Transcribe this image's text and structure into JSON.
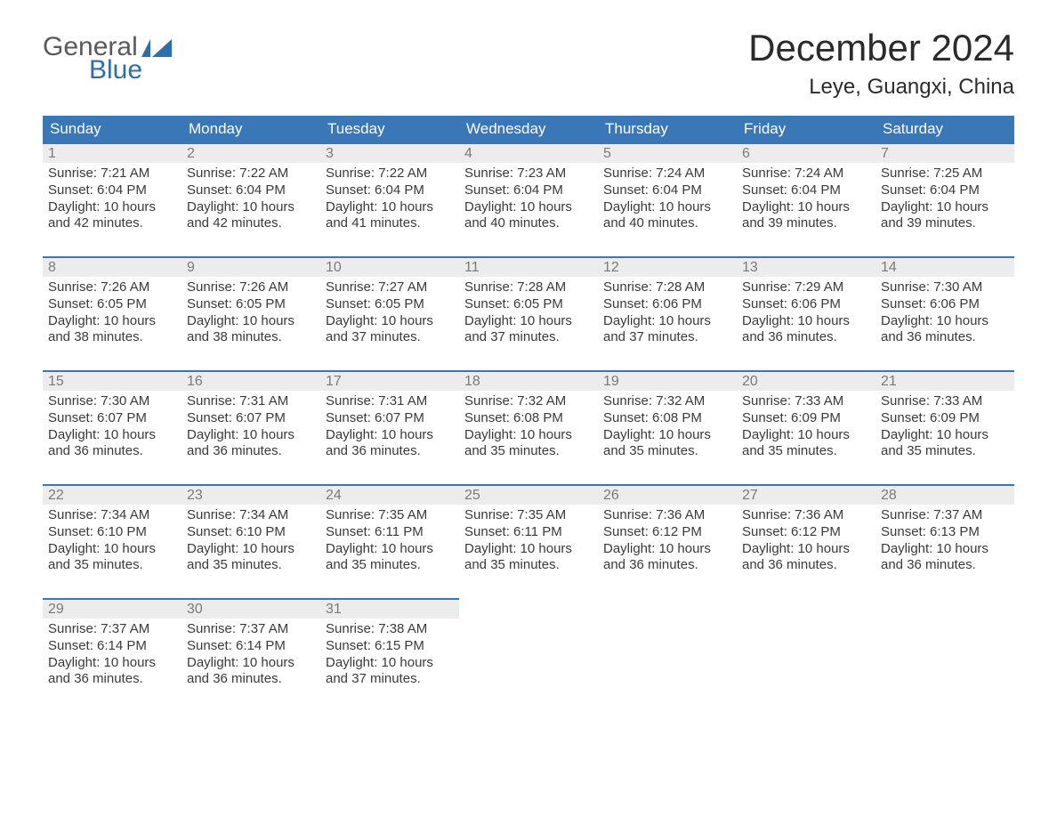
{
  "brand": {
    "part1": "General",
    "part2": "Blue",
    "flag_color": "#2c6fb0"
  },
  "title": "December 2024",
  "location": "Leye, Guangxi, China",
  "colors": {
    "header_bg": "#3a77b6",
    "header_text": "#ffffff",
    "daynum_bg": "#ececec",
    "daynum_border": "#3a77b6",
    "daynum_text": "#7a7a7a",
    "body_text": "#3a3a3a",
    "page_bg": "#ffffff"
  },
  "weekdays": [
    "Sunday",
    "Monday",
    "Tuesday",
    "Wednesday",
    "Thursday",
    "Friday",
    "Saturday"
  ],
  "days": [
    {
      "n": 1,
      "sr": "7:21 AM",
      "ss": "6:04 PM",
      "dl": "10 hours and 42 minutes."
    },
    {
      "n": 2,
      "sr": "7:22 AM",
      "ss": "6:04 PM",
      "dl": "10 hours and 42 minutes."
    },
    {
      "n": 3,
      "sr": "7:22 AM",
      "ss": "6:04 PM",
      "dl": "10 hours and 41 minutes."
    },
    {
      "n": 4,
      "sr": "7:23 AM",
      "ss": "6:04 PM",
      "dl": "10 hours and 40 minutes."
    },
    {
      "n": 5,
      "sr": "7:24 AM",
      "ss": "6:04 PM",
      "dl": "10 hours and 40 minutes."
    },
    {
      "n": 6,
      "sr": "7:24 AM",
      "ss": "6:04 PM",
      "dl": "10 hours and 39 minutes."
    },
    {
      "n": 7,
      "sr": "7:25 AM",
      "ss": "6:04 PM",
      "dl": "10 hours and 39 minutes."
    },
    {
      "n": 8,
      "sr": "7:26 AM",
      "ss": "6:05 PM",
      "dl": "10 hours and 38 minutes."
    },
    {
      "n": 9,
      "sr": "7:26 AM",
      "ss": "6:05 PM",
      "dl": "10 hours and 38 minutes."
    },
    {
      "n": 10,
      "sr": "7:27 AM",
      "ss": "6:05 PM",
      "dl": "10 hours and 37 minutes."
    },
    {
      "n": 11,
      "sr": "7:28 AM",
      "ss": "6:05 PM",
      "dl": "10 hours and 37 minutes."
    },
    {
      "n": 12,
      "sr": "7:28 AM",
      "ss": "6:06 PM",
      "dl": "10 hours and 37 minutes."
    },
    {
      "n": 13,
      "sr": "7:29 AM",
      "ss": "6:06 PM",
      "dl": "10 hours and 36 minutes."
    },
    {
      "n": 14,
      "sr": "7:30 AM",
      "ss": "6:06 PM",
      "dl": "10 hours and 36 minutes."
    },
    {
      "n": 15,
      "sr": "7:30 AM",
      "ss": "6:07 PM",
      "dl": "10 hours and 36 minutes."
    },
    {
      "n": 16,
      "sr": "7:31 AM",
      "ss": "6:07 PM",
      "dl": "10 hours and 36 minutes."
    },
    {
      "n": 17,
      "sr": "7:31 AM",
      "ss": "6:07 PM",
      "dl": "10 hours and 36 minutes."
    },
    {
      "n": 18,
      "sr": "7:32 AM",
      "ss": "6:08 PM",
      "dl": "10 hours and 35 minutes."
    },
    {
      "n": 19,
      "sr": "7:32 AM",
      "ss": "6:08 PM",
      "dl": "10 hours and 35 minutes."
    },
    {
      "n": 20,
      "sr": "7:33 AM",
      "ss": "6:09 PM",
      "dl": "10 hours and 35 minutes."
    },
    {
      "n": 21,
      "sr": "7:33 AM",
      "ss": "6:09 PM",
      "dl": "10 hours and 35 minutes."
    },
    {
      "n": 22,
      "sr": "7:34 AM",
      "ss": "6:10 PM",
      "dl": "10 hours and 35 minutes."
    },
    {
      "n": 23,
      "sr": "7:34 AM",
      "ss": "6:10 PM",
      "dl": "10 hours and 35 minutes."
    },
    {
      "n": 24,
      "sr": "7:35 AM",
      "ss": "6:11 PM",
      "dl": "10 hours and 35 minutes."
    },
    {
      "n": 25,
      "sr": "7:35 AM",
      "ss": "6:11 PM",
      "dl": "10 hours and 35 minutes."
    },
    {
      "n": 26,
      "sr": "7:36 AM",
      "ss": "6:12 PM",
      "dl": "10 hours and 36 minutes."
    },
    {
      "n": 27,
      "sr": "7:36 AM",
      "ss": "6:12 PM",
      "dl": "10 hours and 36 minutes."
    },
    {
      "n": 28,
      "sr": "7:37 AM",
      "ss": "6:13 PM",
      "dl": "10 hours and 36 minutes."
    },
    {
      "n": 29,
      "sr": "7:37 AM",
      "ss": "6:14 PM",
      "dl": "10 hours and 36 minutes."
    },
    {
      "n": 30,
      "sr": "7:37 AM",
      "ss": "6:14 PM",
      "dl": "10 hours and 36 minutes."
    },
    {
      "n": 31,
      "sr": "7:38 AM",
      "ss": "6:15 PM",
      "dl": "10 hours and 37 minutes."
    }
  ],
  "labels": {
    "sunrise": "Sunrise: ",
    "sunset": "Sunset: ",
    "daylight": "Daylight: "
  },
  "layout": {
    "start_weekday_index": 0,
    "total_cells": 35
  }
}
